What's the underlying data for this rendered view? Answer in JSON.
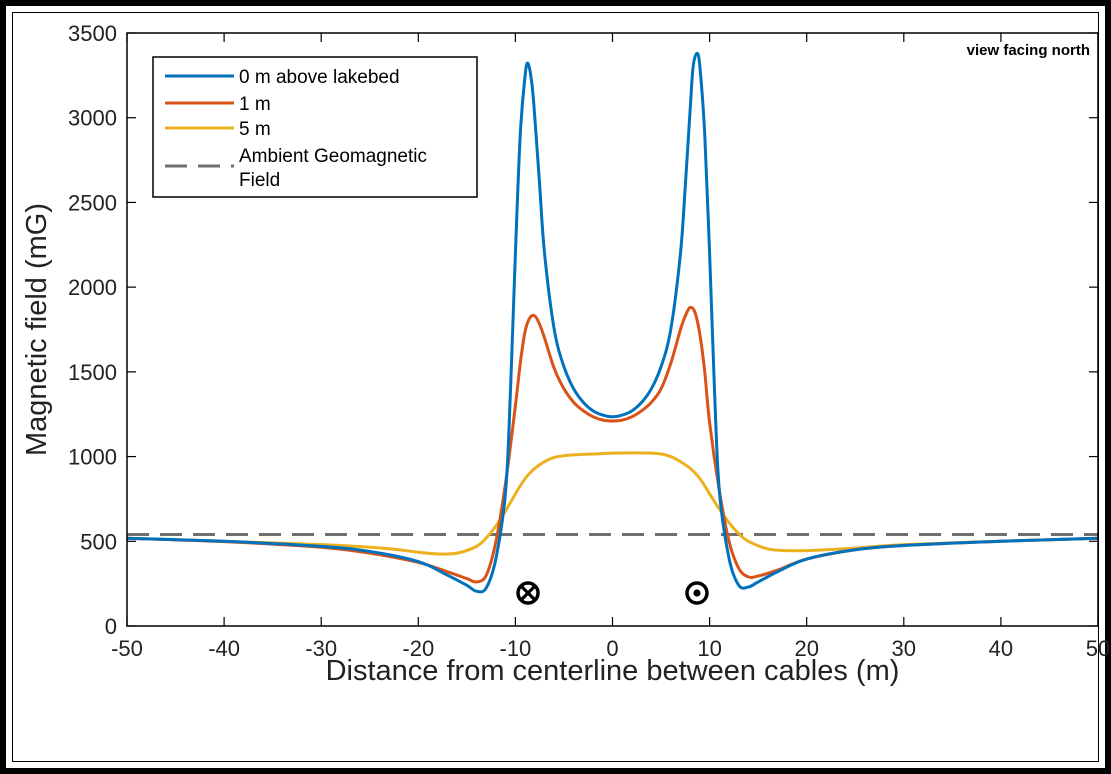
{
  "annotation": "view facing north",
  "cable_markers": [
    {
      "x": -8.7,
      "symbol": "into-page"
    },
    {
      "x": 8.7,
      "symbol": "out-of-page"
    }
  ],
  "chart_data": {
    "type": "line",
    "xlabel": "Distance from centerline between cables (m)",
    "ylabel": "Magnetic field (mG)",
    "xlim": [
      -50,
      50
    ],
    "ylim": [
      0,
      3500
    ],
    "xticks": [
      -50,
      -40,
      -30,
      -20,
      -10,
      0,
      10,
      20,
      30,
      40,
      50
    ],
    "yticks": [
      0,
      500,
      1000,
      1500,
      2000,
      2500,
      3000,
      3500
    ],
    "grid": false,
    "legend_position": "top-left",
    "series": [
      {
        "name": "0 m above lakebed",
        "color": "#0072BD",
        "style": "solid",
        "x": [
          -50,
          -40,
          -30,
          -25,
          -20,
          -17,
          -15,
          -14,
          -13,
          -12,
          -11,
          -10.5,
          -10,
          -9.5,
          -9,
          -8.7,
          -8.3,
          -8,
          -7.5,
          -7,
          -6,
          -5,
          -4,
          -3,
          -2,
          -1,
          0,
          1,
          2,
          3,
          4,
          5,
          6,
          7,
          7.5,
          8,
          8.3,
          8.7,
          9,
          9.5,
          10,
          10.5,
          11,
          12,
          13,
          14,
          15,
          17,
          20,
          25,
          30,
          40,
          50
        ],
        "y": [
          518,
          500,
          470,
          440,
          380,
          300,
          240,
          205,
          225,
          400,
          800,
          1400,
          2200,
          2900,
          3250,
          3320,
          3200,
          3000,
          2600,
          2200,
          1750,
          1530,
          1400,
          1320,
          1270,
          1245,
          1235,
          1245,
          1270,
          1320,
          1400,
          1530,
          1750,
          2200,
          2600,
          3050,
          3300,
          3380,
          3300,
          2900,
          2200,
          1400,
          800,
          400,
          240,
          230,
          260,
          320,
          395,
          450,
          475,
          500,
          518
        ]
      },
      {
        "name": "1 m",
        "color": "#D95319",
        "style": "solid",
        "x": [
          -50,
          -40,
          -30,
          -25,
          -20,
          -17,
          -15,
          -14,
          -13,
          -12,
          -11,
          -10,
          -9.5,
          -9,
          -8.5,
          -8,
          -7.5,
          -7,
          -6,
          -5,
          -4,
          -3,
          -2,
          -1,
          0,
          1,
          2,
          3,
          4,
          5,
          6,
          7,
          7.5,
          8,
          8.5,
          9,
          9.5,
          10,
          11,
          12,
          13,
          14,
          15,
          17,
          20,
          25,
          30,
          40,
          50
        ],
        "y": [
          518,
          498,
          465,
          430,
          375,
          320,
          280,
          260,
          300,
          500,
          850,
          1300,
          1550,
          1740,
          1820,
          1830,
          1780,
          1700,
          1520,
          1400,
          1320,
          1270,
          1235,
          1215,
          1210,
          1215,
          1235,
          1270,
          1320,
          1400,
          1550,
          1750,
          1830,
          1880,
          1850,
          1720,
          1500,
          1200,
          800,
          500,
          340,
          290,
          295,
          330,
          395,
          450,
          475,
          500,
          518
        ]
      },
      {
        "name": "5 m",
        "color": "#EDB120",
        "style": "solid",
        "x": [
          -50,
          -40,
          -30,
          -25,
          -22,
          -20,
          -18,
          -16,
          -14,
          -13,
          -12,
          -11,
          -10,
          -9,
          -8,
          -7,
          -6,
          -5,
          -4,
          -2,
          0,
          2,
          4,
          5,
          6,
          7,
          8,
          9,
          10,
          11,
          12,
          13,
          14,
          16,
          18,
          20,
          22,
          25,
          30,
          40,
          50
        ],
        "y": [
          518,
          500,
          480,
          465,
          450,
          435,
          425,
          430,
          470,
          520,
          590,
          680,
          780,
          870,
          930,
          970,
          995,
          1005,
          1010,
          1015,
          1020,
          1022,
          1020,
          1015,
          1000,
          970,
          930,
          870,
          780,
          690,
          610,
          545,
          500,
          455,
          445,
          445,
          450,
          460,
          480,
          500,
          518
        ]
      },
      {
        "name": "Ambient Geomagnetic Field",
        "color": "#6F6F6F",
        "style": "dashed",
        "x": [
          -50,
          50
        ],
        "y": [
          540,
          540
        ]
      }
    ]
  }
}
